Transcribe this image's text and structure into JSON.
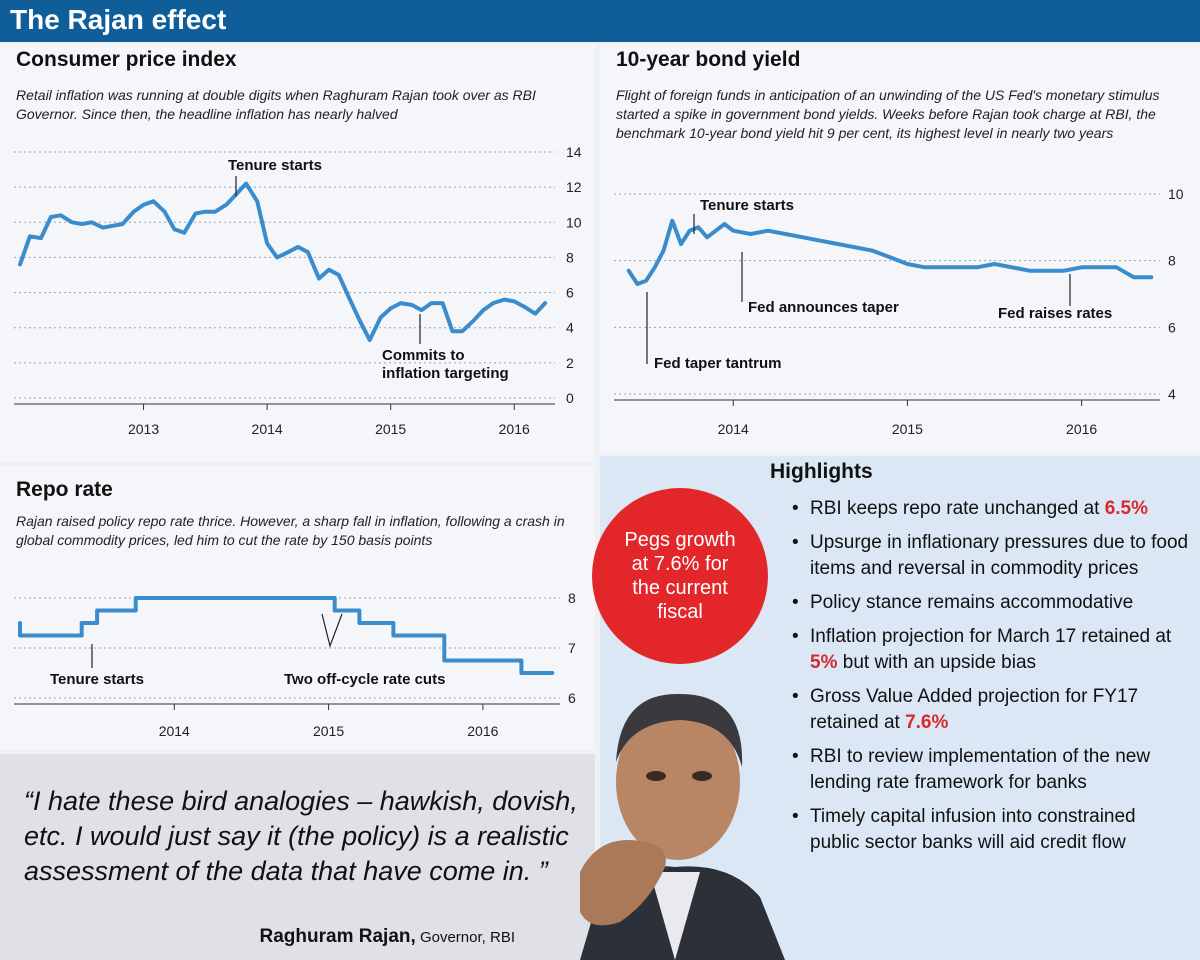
{
  "header": {
    "title": "The Rajan effect"
  },
  "cpi": {
    "title": "Consumer price index",
    "description": "Retail inflation was running at double digits when Raghuram Rajan took over as RBI Governor. Since then, the headline inflation has nearly halved"
  },
  "bond": {
    "title": "10-year bond yield",
    "description": "Flight of foreign funds in anticipation of an unwinding of the US Fed's monetary stimulus started a spike in government bond yields. Weeks before Rajan took charge at RBI, the benchmark 10-year bond yield hit 9 per cent, its highest level in nearly two years"
  },
  "repo": {
    "title": "Repo rate",
    "description": "Rajan raised policy repo rate thrice. However, a sharp fall in inflation, following a crash in global commodity prices, led him to cut the rate by 150 basis points"
  },
  "quote": {
    "text": "“I hate these bird analogies – hawkish, dovish, etc. I would just say it (the policy) is a realistic assessment of the data that have come in. ”",
    "name": "Raghuram Rajan,",
    "role": " Governor, RBI"
  },
  "badge": {
    "text": "Pegs growth at 7.6% for the current fiscal"
  },
  "highlights": {
    "title": "Highlights",
    "items": [
      {
        "before": "RBI keeps repo rate unchanged at ",
        "highlight": "6.5%",
        "after": ""
      },
      {
        "before": "Upsurge in inflationary pressures due to food items and reversal in commodity prices",
        "highlight": "",
        "after": ""
      },
      {
        "before": "Policy stance remains accommodative",
        "highlight": "",
        "after": ""
      },
      {
        "before": "Inflation projection for March 17 retained at ",
        "highlight": "5%",
        "after": " but with an upside bias"
      },
      {
        "before": "Gross Value Added projection for FY17 retained at ",
        "highlight": "7.6%",
        "after": ""
      },
      {
        "before": "RBI to review implementation of the new lending rate framework for banks",
        "highlight": "",
        "after": ""
      },
      {
        "before": "Timely capital infusion into constrained public sector banks will aid credit flow",
        "highlight": "",
        "after": ""
      }
    ]
  },
  "colors": {
    "banner": "#0f5e99",
    "series": "#3a8ccc",
    "badge": "#e2262a",
    "highlight_text": "#d62b2b",
    "highlights_bg": "#dbe7f4",
    "quote_bg": "#dfe1e6"
  },
  "chart_data": [
    {
      "id": "cpi",
      "type": "line",
      "title": "Consumer price index",
      "x_ticks": [
        "2013",
        "2014",
        "2015",
        "2016"
      ],
      "ylim": [
        0,
        14
      ],
      "y_ticks": [
        0,
        2,
        4,
        6,
        8,
        10,
        12,
        14
      ],
      "grid": true,
      "series": [
        {
          "x": [
            2012.0,
            2012.08,
            2012.17,
            2012.25,
            2012.33,
            2012.42,
            2012.5,
            2012.58,
            2012.67,
            2012.75,
            2012.83,
            2012.92,
            2013.0,
            2013.08,
            2013.17,
            2013.25,
            2013.33,
            2013.42,
            2013.5,
            2013.58,
            2013.67,
            2013.75,
            2013.83,
            2013.92,
            2014.0,
            2014.08,
            2014.17,
            2014.25,
            2014.33,
            2014.42,
            2014.5,
            2014.58,
            2014.67,
            2014.75,
            2014.83,
            2014.92,
            2015.0,
            2015.08,
            2015.17,
            2015.25,
            2015.33,
            2015.42,
            2015.5,
            2015.58,
            2015.67,
            2015.75,
            2015.83,
            2015.92,
            2016.0,
            2016.08,
            2016.17,
            2016.25
          ],
          "y": [
            7.6,
            9.2,
            9.1,
            10.3,
            10.4,
            10.0,
            9.9,
            10.0,
            9.7,
            9.8,
            9.9,
            10.6,
            11.0,
            11.2,
            10.6,
            9.6,
            9.4,
            10.5,
            10.6,
            10.6,
            11.0,
            11.6,
            12.2,
            11.2,
            8.8,
            8.0,
            8.3,
            8.6,
            8.3,
            6.8,
            7.3,
            7.0,
            5.6,
            4.4,
            3.3,
            4.6,
            5.1,
            5.4,
            5.3,
            5.0,
            5.4,
            5.4,
            3.8,
            3.8,
            4.4,
            5.0,
            5.4,
            5.6,
            5.5,
            5.2,
            4.8,
            5.4
          ]
        }
      ],
      "annotations": [
        {
          "text": "Tenure starts",
          "x": 2013.72,
          "y": 11.6
        },
        {
          "text": "Commits to inflation targeting",
          "x": 2015.25,
          "y": 5.0
        }
      ]
    },
    {
      "id": "bond",
      "type": "line",
      "title": "10-year bond yield",
      "x_ticks": [
        "2014",
        "2015",
        "2016"
      ],
      "ylim": [
        4,
        10
      ],
      "y_ticks": [
        4,
        6,
        8,
        10
      ],
      "grid": true,
      "series": [
        {
          "x": [
            2013.4,
            2013.45,
            2013.5,
            2013.55,
            2013.6,
            2013.65,
            2013.7,
            2013.75,
            2013.8,
            2013.85,
            2013.9,
            2013.95,
            2014.0,
            2014.1,
            2014.2,
            2014.3,
            2014.4,
            2014.5,
            2014.6,
            2014.7,
            2014.8,
            2014.9,
            2015.0,
            2015.1,
            2015.2,
            2015.3,
            2015.4,
            2015.5,
            2015.6,
            2015.7,
            2015.8,
            2015.9,
            2016.0,
            2016.1,
            2016.2,
            2016.3,
            2016.4
          ],
          "y": [
            7.7,
            7.3,
            7.4,
            7.8,
            8.3,
            9.2,
            8.5,
            8.9,
            9.0,
            8.7,
            8.9,
            9.1,
            8.9,
            8.8,
            8.9,
            8.8,
            8.7,
            8.6,
            8.5,
            8.4,
            8.3,
            8.1,
            7.9,
            7.8,
            7.8,
            7.8,
            7.8,
            7.9,
            7.8,
            7.7,
            7.7,
            7.7,
            7.8,
            7.8,
            7.8,
            7.5,
            7.5
          ]
        }
      ],
      "annotations": [
        {
          "text": "Tenure starts",
          "x": 2013.65,
          "y": 9.2
        },
        {
          "text": "Fed announces taper",
          "x": 2013.95,
          "y": 9.1
        },
        {
          "text": "Fed raises rates",
          "x": 2015.96,
          "y": 7.8
        },
        {
          "text": "Fed taper tantrum",
          "x": 2013.45,
          "y": 7.3
        }
      ]
    },
    {
      "id": "repo",
      "type": "line",
      "title": "Repo rate",
      "x_ticks": [
        "2014",
        "2015",
        "2016"
      ],
      "ylim": [
        6,
        8
      ],
      "y_ticks": [
        6,
        7,
        8
      ],
      "grid": true,
      "series": [
        {
          "x": [
            2013.0,
            2013.0,
            2013.4,
            2013.4,
            2013.5,
            2013.5,
            2013.75,
            2013.75,
            2014.05,
            2014.05,
            2015.04,
            2015.04,
            2015.2,
            2015.2,
            2015.42,
            2015.42,
            2015.75,
            2015.75,
            2016.25,
            2016.25,
            2016.45
          ],
          "y": [
            7.5,
            7.25,
            7.25,
            7.5,
            7.5,
            7.75,
            7.75,
            8.0,
            8.0,
            8.0,
            8.0,
            7.75,
            7.75,
            7.5,
            7.5,
            7.25,
            7.25,
            6.75,
            6.75,
            6.5,
            6.5
          ]
        }
      ],
      "annotations": [
        {
          "text": "Tenure starts",
          "x": 2013.36,
          "y": 7.25
        },
        {
          "text": "Two off-cycle rate cuts",
          "x": 2015.1,
          "y": 7.75
        }
      ]
    }
  ]
}
